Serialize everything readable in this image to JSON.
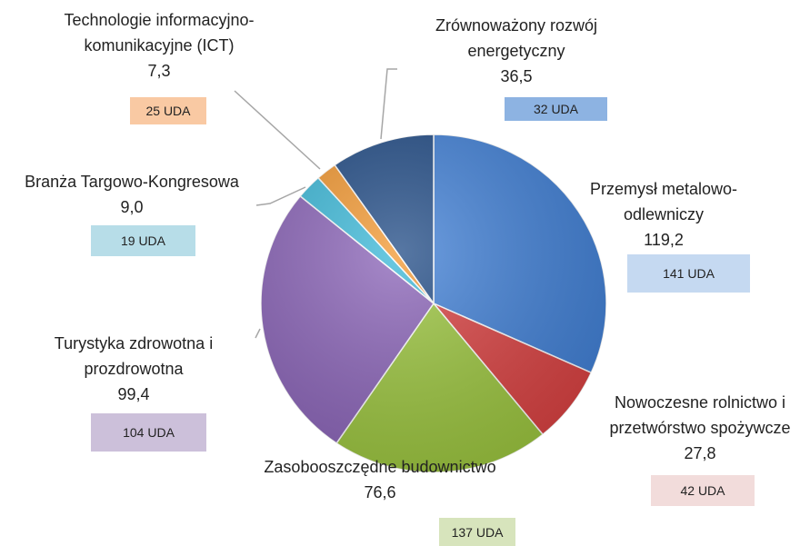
{
  "chart_data": {
    "type": "pie",
    "categories": [
      "Przemysł metalowo-\nodlewniczy",
      "Nowoczesne rolnictwo i\nprzetwórstwo spożywcze",
      "Zasobooszczędne budownictwo",
      "Turystyka zdrowotna i\nprozdrowotna",
      "Branża Targowo-Kongresowa",
      "Technologie informacyjno-\nkomunikacyjne (ICT)",
      "Zrównoważony rozwój\nenergetyczny"
    ],
    "values": [
      119.2,
      27.8,
      76.6,
      99.4,
      9.0,
      7.3,
      36.5
    ],
    "value_labels": [
      "119,2",
      "27,8",
      "76,6",
      "99,4",
      "9,0",
      "7,3",
      "36,5"
    ],
    "annotations": [
      "141 UDA",
      "42 UDA",
      "137 UDA",
      "104 UDA",
      "19 UDA",
      "25 UDA",
      "32 UDA"
    ],
    "colors": [
      "#3f7fd6",
      "#d94040",
      "#9bc53d",
      "#8a63b8",
      "#3ab8d8",
      "#f2972f",
      "#1f4a85"
    ],
    "annotation_colors": [
      "#c5d9f1",
      "#f2dcdb",
      "#d7e4bc",
      "#ccc0da",
      "#b7dde8",
      "#f9c9a3",
      "#8db3e2"
    ]
  }
}
